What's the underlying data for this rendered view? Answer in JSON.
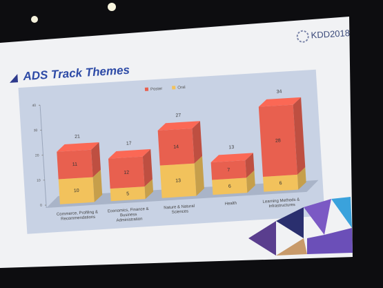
{
  "slide": {
    "title": "ADS Track Themes",
    "logo": "KDD2018"
  },
  "chart_data": {
    "type": "stacked_bar_3d",
    "categories": [
      "Commerce, Profiling & Recommendations",
      "Economics, Finance & Business Administration",
      "Nature & Natural Sciences",
      "Health",
      "Learning Methods & Infrastructures"
    ],
    "series": [
      {
        "name": "Poster",
        "color": "#e8604f",
        "values": [
          11,
          12,
          14,
          7,
          28
        ]
      },
      {
        "name": "Oral",
        "color": "#f2c25c",
        "values": [
          10,
          5,
          13,
          6,
          6
        ]
      }
    ],
    "total_labels": [
      21,
      17,
      27,
      13,
      34
    ],
    "ylim": [
      0,
      40
    ],
    "yticks": [
      0,
      10,
      20,
      30,
      40
    ],
    "grid": false,
    "legend": "top"
  }
}
